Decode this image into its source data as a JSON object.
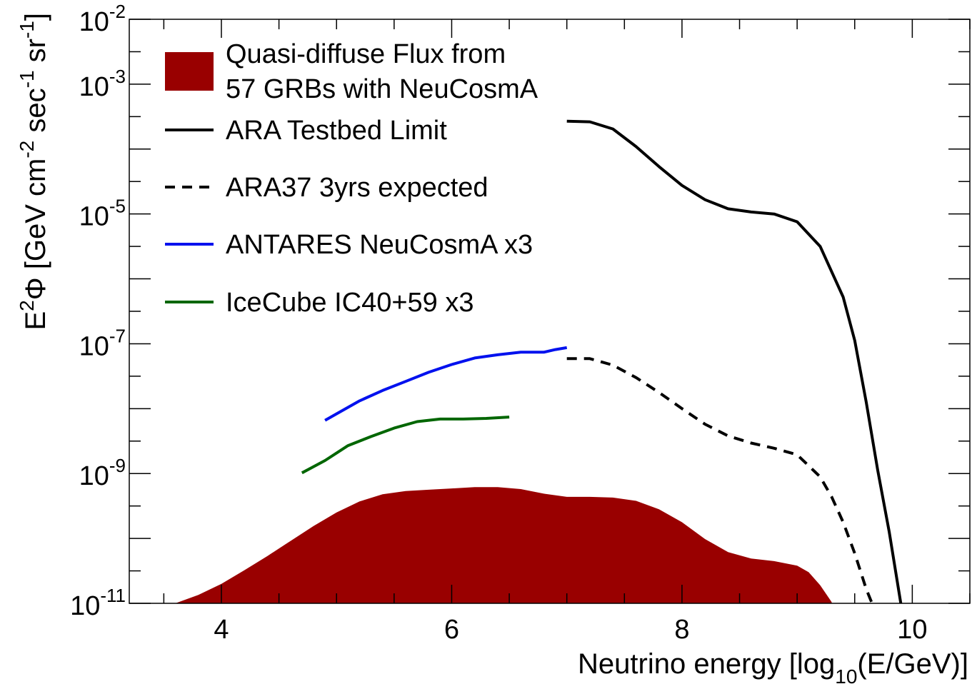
{
  "chart_data": {
    "type": "area",
    "title": "",
    "xlabel": {
      "text": "Neutrino energy [log",
      "sub": "10",
      "tail": "(E/GeV)]"
    },
    "ylabel": {
      "e": "E",
      "e_sup": "2",
      "phi": "Φ",
      "open": " [GeV cm",
      "cm_sup": "-2",
      "sec": " sec",
      "sec_sup": "-1",
      "sr": " sr",
      "sr_sup": "-1",
      "close": "]"
    },
    "xlim": [
      3.2,
      10.5
    ],
    "ylim_log10": [
      -11,
      -2
    ],
    "y_scale": "log",
    "grid": false,
    "legend_position": "top-left",
    "x_ticks": [
      {
        "value": 4,
        "label": "4"
      },
      {
        "value": 6,
        "label": "6"
      },
      {
        "value": 8,
        "label": "8"
      },
      {
        "value": 10,
        "label": "10"
      }
    ],
    "y_ticks": [
      {
        "exp": -11,
        "base": "10",
        "sup": "-11"
      },
      {
        "exp": -9,
        "base": "10",
        "sup": "-9"
      },
      {
        "exp": -7,
        "base": "10",
        "sup": "-7"
      },
      {
        "exp": -5,
        "base": "10",
        "sup": "-5"
      },
      {
        "exp": -3,
        "base": "10",
        "sup": "-3"
      },
      {
        "exp": -2,
        "base": "10",
        "sup": "-2"
      }
    ],
    "series": [
      {
        "name": "Quasi-diffuse Flux from 57 GRBs with NeuCosmA",
        "legend_lines": [
          "Quasi-diffuse Flux from",
          "57 GRBs with NeuCosmA"
        ],
        "style": "fill",
        "color": "#990000",
        "x": [
          3.6,
          3.8,
          4.0,
          4.2,
          4.4,
          4.6,
          4.8,
          5.0,
          5.2,
          5.4,
          5.6,
          5.8,
          6.0,
          6.2,
          6.4,
          6.6,
          6.8,
          7.0,
          7.2,
          7.4,
          7.6,
          7.8,
          8.0,
          8.2,
          8.4,
          8.6,
          8.8,
          9.0,
          9.1,
          9.2,
          9.3
        ],
        "y_log10": [
          -11.0,
          -10.87,
          -10.7,
          -10.49,
          -10.27,
          -10.04,
          -9.81,
          -9.6,
          -9.43,
          -9.32,
          -9.27,
          -9.25,
          -9.23,
          -9.21,
          -9.21,
          -9.24,
          -9.31,
          -9.36,
          -9.36,
          -9.37,
          -9.42,
          -9.55,
          -9.75,
          -10.01,
          -10.21,
          -10.31,
          -10.35,
          -10.42,
          -10.52,
          -10.72,
          -10.98
        ]
      },
      {
        "name": "ARA Testbed Limit",
        "style": "solid",
        "color": "#000000",
        "x": [
          7.0,
          7.2,
          7.4,
          7.6,
          7.8,
          8.0,
          8.2,
          8.4,
          8.6,
          8.8,
          9.0,
          9.2,
          9.4,
          9.5,
          9.6,
          9.7,
          9.8,
          9.9
        ],
        "y_log10": [
          -3.57,
          -3.58,
          -3.69,
          -3.96,
          -4.27,
          -4.56,
          -4.78,
          -4.92,
          -4.97,
          -5.0,
          -5.12,
          -5.5,
          -6.28,
          -6.95,
          -7.9,
          -8.95,
          -9.9,
          -11.0
        ]
      },
      {
        "name": "ARA37 3yrs expected",
        "style": "dashed",
        "color": "#000000",
        "x": [
          7.0,
          7.2,
          7.4,
          7.6,
          7.8,
          8.0,
          8.2,
          8.4,
          8.6,
          8.8,
          9.0,
          9.2,
          9.3,
          9.4,
          9.5,
          9.6,
          9.65
        ],
        "y_log10": [
          -7.23,
          -7.23,
          -7.33,
          -7.52,
          -7.75,
          -8.0,
          -8.24,
          -8.42,
          -8.53,
          -8.61,
          -8.71,
          -9.05,
          -9.36,
          -9.75,
          -10.23,
          -10.78,
          -11.0
        ]
      },
      {
        "name": "ANTARES NeuCosmA x3",
        "style": "solid",
        "color": "#0011ee",
        "x": [
          4.9,
          5.0,
          5.2,
          5.4,
          5.6,
          5.8,
          6.0,
          6.2,
          6.4,
          6.6,
          6.8,
          6.9,
          7.0
        ],
        "y_log10": [
          -8.18,
          -8.08,
          -7.88,
          -7.72,
          -7.58,
          -7.44,
          -7.32,
          -7.22,
          -7.17,
          -7.13,
          -7.13,
          -7.09,
          -7.06
        ]
      },
      {
        "name": "IceCube IC40+59 x3",
        "style": "solid",
        "color": "#006600",
        "x": [
          4.7,
          4.9,
          5.1,
          5.3,
          5.5,
          5.7,
          5.9,
          6.1,
          6.3,
          6.5
        ],
        "y_log10": [
          -8.99,
          -8.8,
          -8.57,
          -8.43,
          -8.3,
          -8.2,
          -8.16,
          -8.16,
          -8.15,
          -8.13
        ]
      }
    ]
  }
}
